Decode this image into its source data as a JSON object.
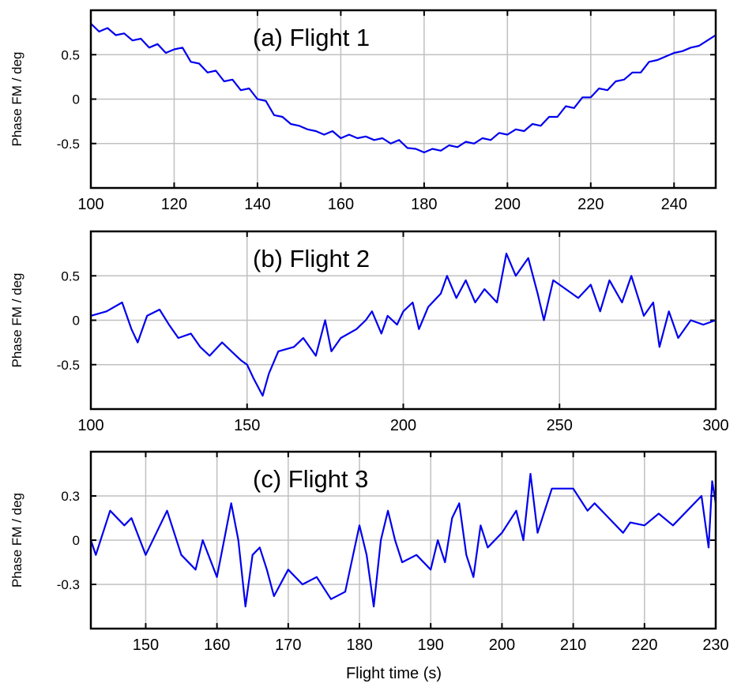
{
  "chart_data": [
    {
      "type": "line",
      "title": "(a) Flight 1",
      "ylabel": "Phase FM / deg",
      "xlabel": "",
      "xlim": [
        100,
        250
      ],
      "ylim": [
        -1,
        1
      ],
      "xticks": [
        100,
        120,
        140,
        160,
        180,
        200,
        220,
        240
      ],
      "xtick_labels": [
        "100",
        "120",
        "140",
        "160",
        "180",
        "200",
        "220",
        "240"
      ],
      "yticks": [
        0.5,
        0,
        -0.5
      ],
      "ytick_labels": [
        "0.5",
        "0",
        "-0.5"
      ],
      "grid": true,
      "color": "#0000ee",
      "x": [
        100,
        102,
        104,
        106,
        108,
        110,
        112,
        114,
        116,
        118,
        120,
        122,
        124,
        126,
        128,
        130,
        132,
        134,
        136,
        138,
        140,
        142,
        144,
        146,
        148,
        150,
        152,
        154,
        156,
        158,
        160,
        162,
        164,
        166,
        168,
        170,
        172,
        174,
        176,
        178,
        180,
        182,
        184,
        186,
        188,
        190,
        192,
        194,
        196,
        198,
        200,
        202,
        204,
        206,
        208,
        210,
        212,
        214,
        216,
        218,
        220,
        222,
        224,
        226,
        228,
        230,
        232,
        234,
        236,
        238,
        240,
        242,
        244,
        246,
        248,
        250
      ],
      "y": [
        0.85,
        0.76,
        0.8,
        0.72,
        0.74,
        0.66,
        0.68,
        0.58,
        0.62,
        0.52,
        0.56,
        0.58,
        0.42,
        0.4,
        0.3,
        0.32,
        0.2,
        0.22,
        0.1,
        0.12,
        0.0,
        -0.02,
        -0.18,
        -0.2,
        -0.28,
        -0.3,
        -0.34,
        -0.36,
        -0.4,
        -0.36,
        -0.44,
        -0.4,
        -0.44,
        -0.42,
        -0.46,
        -0.44,
        -0.5,
        -0.46,
        -0.55,
        -0.56,
        -0.6,
        -0.56,
        -0.58,
        -0.52,
        -0.54,
        -0.48,
        -0.5,
        -0.44,
        -0.46,
        -0.38,
        -0.4,
        -0.34,
        -0.36,
        -0.28,
        -0.3,
        -0.2,
        -0.2,
        -0.08,
        -0.1,
        0.02,
        0.02,
        0.12,
        0.1,
        0.2,
        0.22,
        0.3,
        0.3,
        0.42,
        0.44,
        0.48,
        0.52,
        0.54,
        0.58,
        0.6,
        0.66,
        0.72
      ]
    },
    {
      "type": "line",
      "title": "(b) Flight 2",
      "ylabel": "Phase FM / deg",
      "xlabel": "",
      "xlim": [
        100,
        300
      ],
      "ylim": [
        -1,
        1
      ],
      "xticks": [
        100,
        150,
        200,
        250,
        300
      ],
      "xtick_labels": [
        "100",
        "150",
        "200",
        "250",
        "300"
      ],
      "yticks": [
        0.5,
        0,
        -0.5
      ],
      "ytick_labels": [
        "0.5",
        "0",
        "-0.5"
      ],
      "grid": true,
      "color": "#0000ee",
      "x": [
        100,
        105,
        110,
        113,
        115,
        118,
        122,
        125,
        128,
        132,
        135,
        138,
        142,
        145,
        148,
        150,
        152,
        155,
        157,
        160,
        165,
        168,
        172,
        175,
        177,
        180,
        185,
        188,
        190,
        193,
        195,
        198,
        200,
        203,
        205,
        208,
        212,
        214,
        217,
        220,
        223,
        226,
        230,
        233,
        236,
        240,
        243,
        245,
        248,
        252,
        256,
        260,
        263,
        266,
        270,
        273,
        277,
        280,
        282,
        285,
        288,
        292,
        296,
        300
      ],
      "y": [
        0.05,
        0.1,
        0.2,
        -0.1,
        -0.25,
        0.05,
        0.12,
        -0.05,
        -0.2,
        -0.15,
        -0.3,
        -0.4,
        -0.25,
        -0.35,
        -0.45,
        -0.5,
        -0.65,
        -0.85,
        -0.6,
        -0.35,
        -0.3,
        -0.2,
        -0.4,
        0.0,
        -0.35,
        -0.2,
        -0.1,
        0.0,
        0.1,
        -0.15,
        0.05,
        -0.05,
        0.1,
        0.2,
        -0.1,
        0.15,
        0.3,
        0.5,
        0.25,
        0.45,
        0.2,
        0.35,
        0.2,
        0.75,
        0.5,
        0.7,
        0.3,
        0.0,
        0.45,
        0.35,
        0.25,
        0.4,
        0.1,
        0.45,
        0.2,
        0.5,
        0.05,
        0.2,
        -0.3,
        0.1,
        -0.2,
        0.0,
        -0.05,
        0.0
      ]
    },
    {
      "type": "line",
      "title": "(c) Flight 3",
      "ylabel": "Phase FM / deg",
      "xlabel": "Flight time (s)",
      "xlim": [
        142.3,
        230
      ],
      "ylim": [
        -0.6,
        0.6
      ],
      "xticks": [
        150,
        160,
        170,
        180,
        190,
        200,
        210,
        220,
        230
      ],
      "xtick_labels": [
        "150",
        "160",
        "170",
        "180",
        "190",
        "200",
        "210",
        "220",
        "230"
      ],
      "yticks": [
        0.3,
        0,
        -0.3
      ],
      "ytick_labels": [
        "0.3",
        "0",
        "-0.3"
      ],
      "grid": true,
      "color": "#0000ee",
      "x": [
        142.3,
        143,
        145,
        147,
        148,
        150,
        152,
        153,
        155,
        157,
        158,
        160,
        161,
        162,
        163,
        164,
        165,
        166,
        167,
        168,
        170,
        172,
        174,
        176,
        178,
        180,
        181,
        182,
        183,
        184,
        185,
        186,
        188,
        190,
        191,
        192,
        193,
        194,
        195,
        196,
        197,
        198,
        200,
        202,
        203,
        204,
        205,
        206,
        207,
        209,
        210,
        212,
        213,
        215,
        217,
        218,
        220,
        222,
        224,
        226,
        228,
        229,
        229.5,
        230
      ],
      "y": [
        0.0,
        -0.1,
        0.2,
        0.1,
        0.15,
        -0.1,
        0.1,
        0.2,
        -0.1,
        -0.2,
        0.0,
        -0.25,
        0.0,
        0.25,
        0.0,
        -0.45,
        -0.1,
        -0.05,
        -0.2,
        -0.38,
        -0.2,
        -0.3,
        -0.25,
        -0.4,
        -0.35,
        0.1,
        -0.1,
        -0.45,
        0.0,
        0.2,
        0.0,
        -0.15,
        -0.1,
        -0.2,
        0.0,
        -0.15,
        0.15,
        0.25,
        -0.1,
        -0.25,
        0.1,
        -0.05,
        0.05,
        0.2,
        0.0,
        0.45,
        0.05,
        0.2,
        0.35,
        0.35,
        0.35,
        0.2,
        0.25,
        0.15,
        0.05,
        0.12,
        0.1,
        0.18,
        0.1,
        0.2,
        0.3,
        -0.05,
        0.4,
        0.25
      ]
    }
  ]
}
